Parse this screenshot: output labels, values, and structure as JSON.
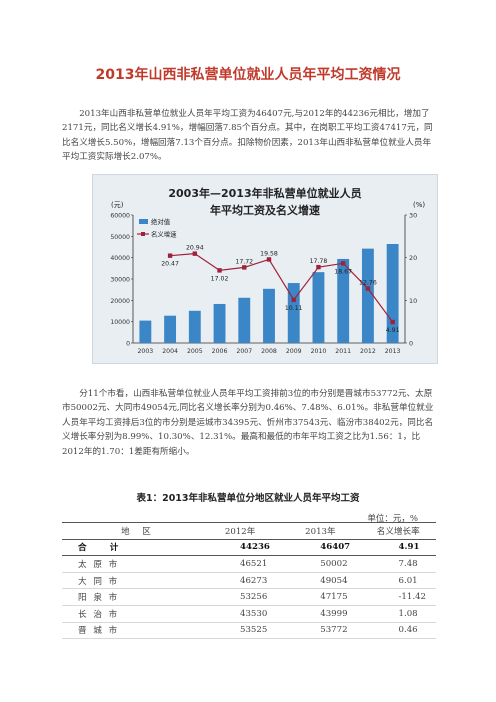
{
  "title": "2013年山西非私营单位就业人员年平均工资情况",
  "para1": "2013年山西非私营单位就业人员年平均工资为46407元,与2012年的44236元相比，增加了2171元，同比名义增长4.91%，增幅回落7.85个百分点。其中，在岗职工平均工资47417元，同比名义增长5.50%，增幅回落7.13个百分点。扣除物价因素，2013年山西非私营单位就业人员年平均工资实际增长2.07%。",
  "para2": "分11个市看，山西非私营单位就业人员年平均工资排前3位的市分别是晋城市53772元、太原市50002元、大同市49054元,同比名义增长率分别为0.46%、7.48%、6.01%。非私营单位就业人员年平均工资排后3位的市分别是运城市34395元、忻州市37543元、临汾市38402元，同比名义增长率分别为8.99%、10.30%、12.31%。最高和最低的市年平均工资之比为1.56：1，比2012年的1.70：1差距有所缩小。",
  "chart_data": {
    "type": "bar",
    "title_line1": "2003年—2013年非私营单位就业人员",
    "title_line2": "年平均工资及名义增速",
    "left_unit": "(元)",
    "right_unit": "(%)",
    "categories": [
      "2003",
      "2004",
      "2005",
      "2006",
      "2007",
      "2008",
      "2009",
      "2010",
      "2011",
      "2012",
      "2013"
    ],
    "series": [
      {
        "name": "绝对值",
        "type": "bar",
        "axis": "left",
        "color": "#3b86c6",
        "values": [
          10500,
          12800,
          15100,
          18300,
          21200,
          25400,
          28100,
          33200,
          39400,
          44236,
          46407
        ]
      },
      {
        "name": "名义增速",
        "type": "line",
        "axis": "right",
        "color": "#a0223a",
        "values": [
          null,
          20.47,
          20.94,
          17.02,
          17.72,
          19.58,
          10.11,
          17.78,
          18.67,
          12.76,
          4.91
        ],
        "labels": [
          "",
          "20.47",
          "20.94",
          "17.02",
          "17.72",
          "19.58",
          "10.11",
          "17.78",
          "18.67",
          "12.76",
          "4.91"
        ]
      }
    ],
    "ylim_left": [
      0,
      60000
    ],
    "yticks_left": [
      "0",
      "10000",
      "20000",
      "30000",
      "40000",
      "50000",
      "60000"
    ],
    "ylim_right": [
      0,
      30
    ],
    "yticks_right": [
      "0",
      "10",
      "20",
      "30"
    ],
    "legend_position": "top-left",
    "grid": false
  },
  "table": {
    "caption": "表1：2013年非私营单位分地区就业人员年平均工资",
    "unit": "单位：元，%",
    "headers": [
      "地　区",
      "2012年",
      "2013年",
      "名义增长率"
    ],
    "total": [
      "合　　计",
      "44236",
      "46407",
      "4.91"
    ],
    "rows": [
      [
        "太 原 市",
        "46521",
        "50002",
        "7.48"
      ],
      [
        "大 同 市",
        "46273",
        "49054",
        "6.01"
      ],
      [
        "阳 泉 市",
        "53256",
        "47175",
        "-11.42"
      ],
      [
        "长 治 市",
        "43530",
        "43999",
        "1.08"
      ],
      [
        "晋 城 市",
        "53525",
        "53772",
        "0.46"
      ]
    ]
  }
}
